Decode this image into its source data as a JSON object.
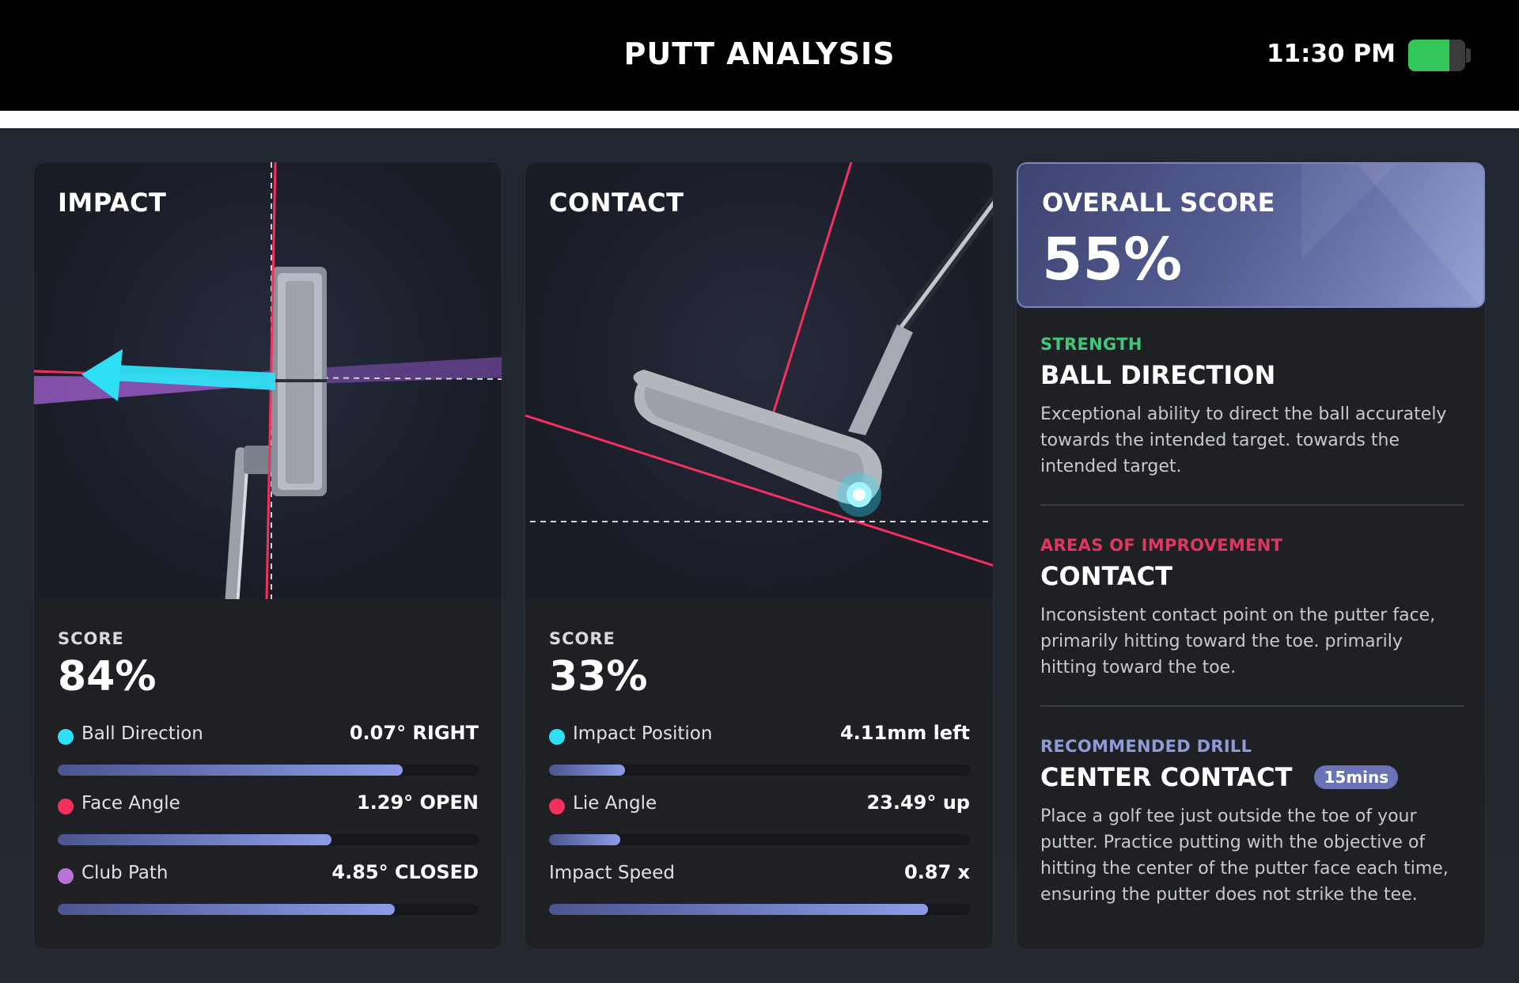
{
  "header": {
    "title": "PUTT ANALYSIS",
    "time": "11:30 PM",
    "battery_level": 0.72,
    "battery_color": "#33c75a"
  },
  "impact": {
    "title": "IMPACT",
    "score_label": "SCORE",
    "score": "84%",
    "metrics": [
      {
        "name": "Ball Direction",
        "value": "0.07°  RIGHT",
        "dot_color": "#2fe0f5",
        "progress": 0.82
      },
      {
        "name": "Face Angle",
        "value": "1.29°  OPEN",
        "dot_color": "#f5305f",
        "progress": 0.65
      },
      {
        "name": "Club Path",
        "value": "4.85°  CLOSED",
        "dot_color": "#b774d6",
        "progress": 0.8
      }
    ]
  },
  "contact": {
    "title": "CONTACT",
    "score_label": "SCORE",
    "score": "33%",
    "metrics": [
      {
        "name": "Impact Position",
        "value": "4.11mm left",
        "dot_color": "#2fe0f5",
        "progress": 0.18
      },
      {
        "name": "Lie Angle",
        "value": "23.49° up",
        "dot_color": "#f5305f",
        "progress": 0.17
      },
      {
        "name": "Impact Speed",
        "value": "0.87 x",
        "dot_color": null,
        "progress": 0.9
      }
    ]
  },
  "overall": {
    "title": "OVERALL SCORE",
    "value": "55%",
    "strength": {
      "kicker": "STRENGTH",
      "kicker_color": "#3ec97a",
      "heading": "BALL DIRECTION",
      "description": "Exceptional ability to direct the ball accurately towards the intended target. towards the intended target."
    },
    "improvement": {
      "kicker": "AREAS OF IMPROVEMENT",
      "kicker_color": "#e0365f",
      "heading": "CONTACT",
      "description": "Inconsistent contact point on the putter face, primarily hitting toward the toe. primarily hitting toward the toe."
    },
    "drill": {
      "kicker": "RECOMMENDED DRILL",
      "kicker_color": "#8f9ad8",
      "heading": "CENTER CONTACT",
      "badge": "15mins",
      "description": "Place a golf tee just outside the toe of your putter. Practice putting with the objective of hitting the center of the putter face each time, ensuring the putter does not strike the tee."
    }
  }
}
